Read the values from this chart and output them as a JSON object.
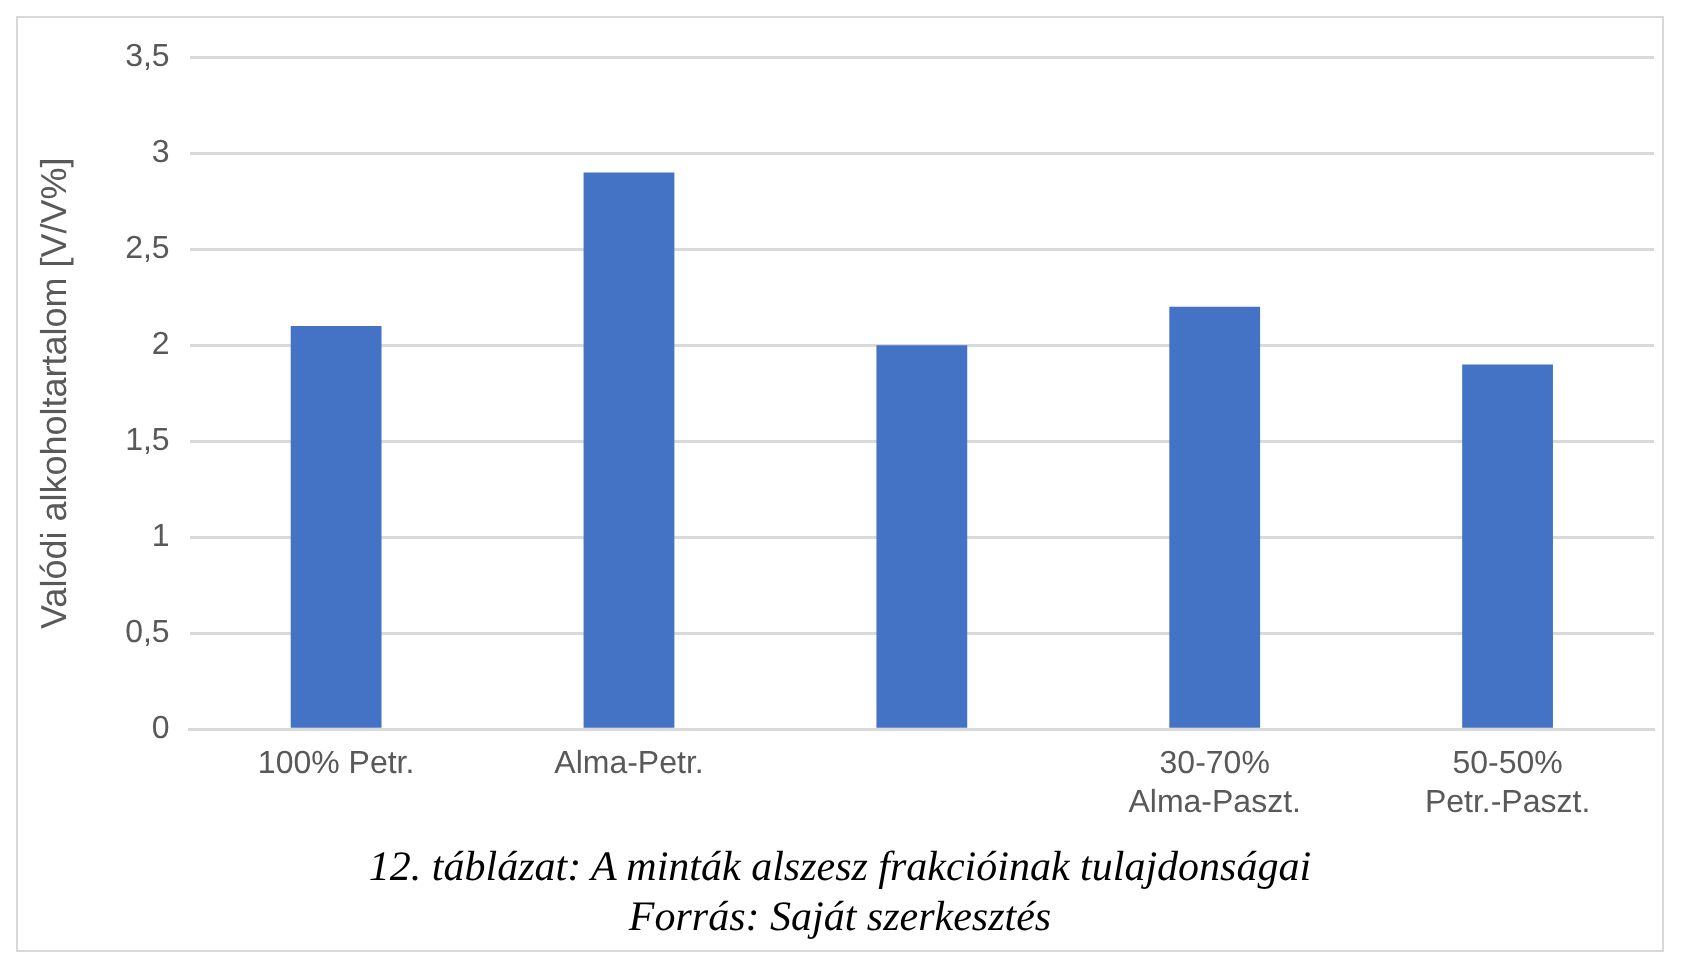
{
  "chart_data": {
    "type": "bar",
    "ylabel": "Valódi alkoholtartalom [V/V%]",
    "categories": [
      "100% Petr.",
      "Alma-Petr.",
      null,
      "30-70% Alma-Paszt.",
      "50-50% Petr.-Paszt."
    ],
    "values": [
      2.1,
      2.9,
      2.0,
      2.2,
      1.9
    ],
    "color": "#4472c4",
    "ylim": [
      0,
      3.5
    ],
    "yticks": [
      0,
      {
        "value": 0.5,
        "label": "0,5"
      },
      1,
      {
        "value": 1.5,
        "label": "1,5"
      },
      2,
      {
        "value": 2.5,
        "label": "2,5"
      },
      3,
      {
        "value": 3.5,
        "label": "3,5"
      }
    ],
    "grid": "y",
    "annotations": [
      "12. táblázat: A minták alszesz frakcióinak tulajdonságai",
      "Forrás: Saját szerkesztés"
    ]
  }
}
